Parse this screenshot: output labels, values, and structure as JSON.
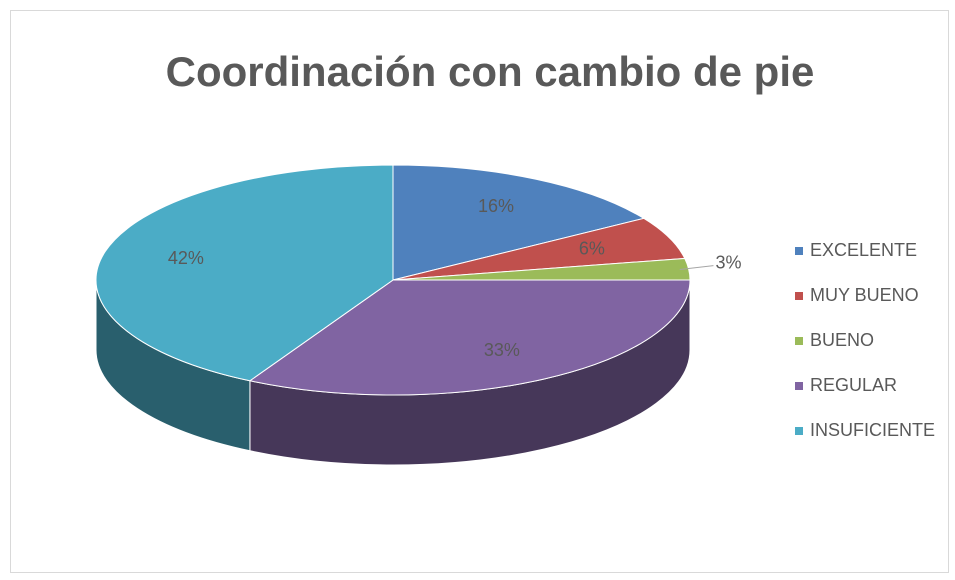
{
  "chart_data": {
    "type": "pie",
    "title": "Coordinación con cambio de pie",
    "categories": [
      "EXCELENTE",
      "MUY BUENO",
      "BUENO",
      "REGULAR",
      "INSUFICIENTE"
    ],
    "values": [
      16,
      6,
      3,
      33,
      42
    ],
    "value_labels": [
      "16%",
      "6%",
      "3%",
      "33%",
      "42%"
    ],
    "colors": [
      "#4f81bd",
      "#c0504d",
      "#9bbb59",
      "#8064a2",
      "#4bacc6"
    ],
    "legend": "right"
  }
}
